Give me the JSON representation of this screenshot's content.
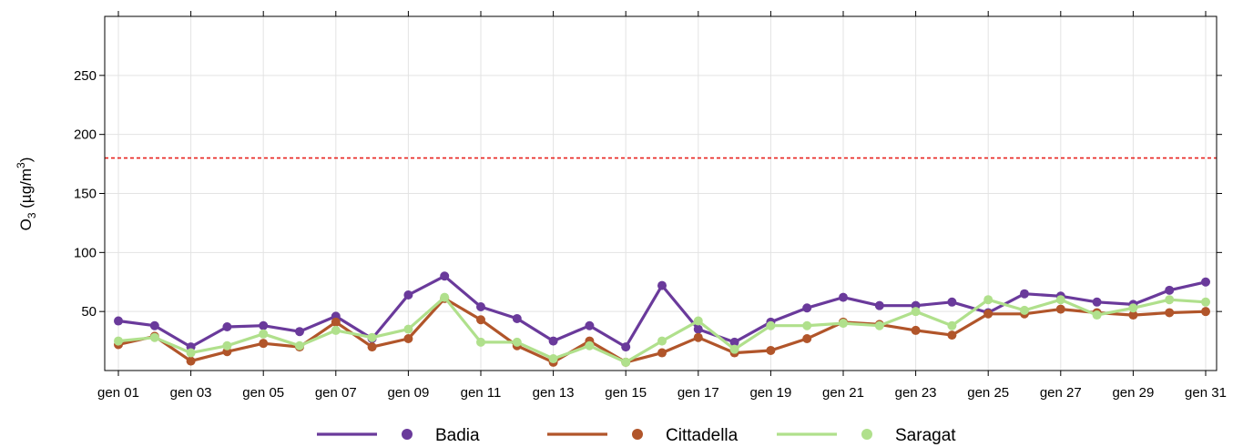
{
  "chart_data": {
    "type": "line",
    "title": "",
    "xlabel": "",
    "ylabel": {
      "prefix": "O",
      "sub": "3",
      "mid": " (µg/m",
      "sup": "3",
      "suffix": ")"
    },
    "x": [
      "gen 01",
      "gen 02",
      "gen 03",
      "gen 04",
      "gen 05",
      "gen 06",
      "gen 07",
      "gen 08",
      "gen 09",
      "gen 10",
      "gen 11",
      "gen 12",
      "gen 13",
      "gen 14",
      "gen 15",
      "gen 16",
      "gen 17",
      "gen 18",
      "gen 19",
      "gen 20",
      "gen 21",
      "gen 22",
      "gen 23",
      "gen 24",
      "gen 25",
      "gen 26",
      "gen 27",
      "gen 28",
      "gen 29",
      "gen 30",
      "gen 31"
    ],
    "xticks": [
      "gen 01",
      "gen 03",
      "gen 05",
      "gen 07",
      "gen 09",
      "gen 11",
      "gen 13",
      "gen 15",
      "gen 17",
      "gen 19",
      "gen 21",
      "gen 23",
      "gen 25",
      "gen 27",
      "gen 29",
      "gen 31"
    ],
    "ylim": [
      0,
      300
    ],
    "yticks": [
      50,
      100,
      150,
      200,
      250
    ],
    "grid": true,
    "legend_position": "bottom",
    "threshold": {
      "value": 180,
      "color": "#e8221e",
      "style": "dashed"
    },
    "series": [
      {
        "name": "Badia",
        "color": "#6a3a9b",
        "values": [
          42,
          38,
          20,
          37,
          38,
          33,
          46,
          27,
          64,
          80,
          54,
          44,
          25,
          38,
          20,
          72,
          35,
          24,
          41,
          53,
          62,
          55,
          55,
          58,
          49,
          65,
          63,
          58,
          56,
          68,
          75
        ]
      },
      {
        "name": "Cittadella",
        "color": "#b1552a",
        "values": [
          22,
          29,
          8,
          16,
          23,
          20,
          41,
          20,
          27,
          61,
          43,
          21,
          7,
          25,
          7,
          15,
          28,
          15,
          17,
          27,
          41,
          39,
          34,
          30,
          48,
          48,
          52,
          49,
          47,
          49,
          50
        ]
      },
      {
        "name": "Saragat",
        "color": "#b0e08c",
        "values": [
          25,
          28,
          15,
          21,
          31,
          21,
          34,
          28,
          35,
          62,
          24,
          24,
          10,
          21,
          7,
          25,
          42,
          18,
          38,
          38,
          40,
          38,
          50,
          38,
          60,
          51,
          60,
          47,
          53,
          60,
          58
        ]
      }
    ]
  }
}
